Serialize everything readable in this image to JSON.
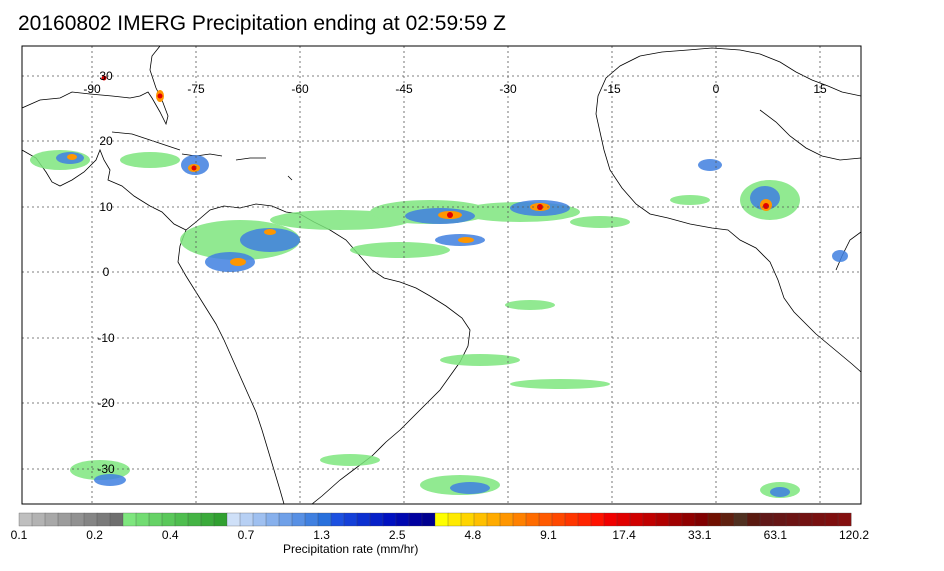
{
  "title": "20160802 IMERG Precipitation ending at 02:59:59 Z",
  "map": {
    "lon_range": [
      -100,
      20
    ],
    "lat_range": [
      -38,
      42
    ],
    "lon_ticks": [
      -90,
      -75,
      -60,
      -45,
      -30,
      -15,
      0,
      15
    ],
    "lon_tick_labels": [
      "-90",
      "-75",
      "-60",
      "-45",
      "-30",
      "-15",
      "0",
      "15"
    ],
    "lat_ticks": [
      30,
      20,
      10,
      0,
      -10,
      -20,
      -30
    ],
    "lat_tick_labels": [
      "30",
      "20",
      "10",
      "0",
      "-10",
      "-20",
      "-30"
    ],
    "gridlines": true
  },
  "colorbar": {
    "title": "Precipitation rate (mm/hr)",
    "labels": [
      "0.1",
      "0.2",
      "0.4",
      "0.7",
      "1.3",
      "2.5",
      "4.8",
      "9.1",
      "17.4",
      "33.1",
      "63.1",
      "120.2"
    ],
    "colors": [
      "#bfbfbf",
      "#b3b3b3",
      "#a8a8a8",
      "#9c9c9c",
      "#919191",
      "#858585",
      "#7a7a7a",
      "#6e6e6e",
      "#7ee67e",
      "#72dc72",
      "#66d266",
      "#5ac85a",
      "#4fbe4f",
      "#45b445",
      "#3baa3b",
      "#31a031",
      "#cfe0f8",
      "#b7d0f4",
      "#9fc0f0",
      "#87b0ec",
      "#6fa0e8",
      "#5890e4",
      "#4080e0",
      "#2870dc",
      "#1c50e0",
      "#1440d8",
      "#0c30d0",
      "#0620c8",
      "#0010c0",
      "#0008b0",
      "#0000a0",
      "#000090",
      "#ffff00",
      "#ffea00",
      "#ffd500",
      "#ffc000",
      "#ffab00",
      "#ff9600",
      "#ff8100",
      "#ff6c00",
      "#ff5a00",
      "#ff4800",
      "#ff3600",
      "#ff2400",
      "#ff1200",
      "#f00000",
      "#e00000",
      "#d00000",
      "#c00000",
      "#b00000",
      "#a00000",
      "#900000",
      "#800000",
      "#701000",
      "#602010",
      "#503020",
      "#5a1a10",
      "#601818",
      "#661616",
      "#6c1414",
      "#721212",
      "#781010",
      "#7e0e0e",
      "#841010"
    ]
  }
}
